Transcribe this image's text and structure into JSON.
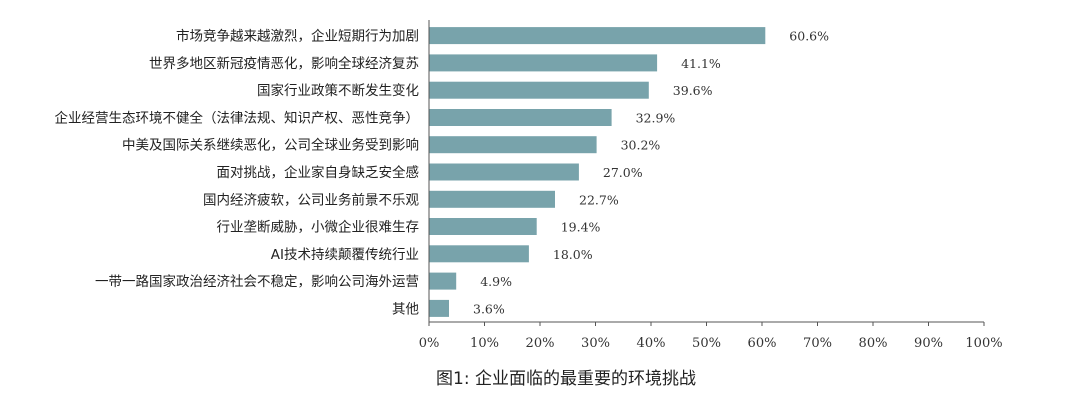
{
  "chart_data": {
    "type": "bar",
    "orientation": "horizontal",
    "title": "图1: 企业面临的最重要的环境挑战",
    "xlabel": "",
    "ylabel": "",
    "xlim": [
      0,
      100
    ],
    "x_ticks": [
      "0%",
      "10%",
      "20%",
      "30%",
      "40%",
      "50%",
      "60%",
      "70%",
      "80%",
      "90%",
      "100%"
    ],
    "grid": false,
    "bar_color": "#78a3ab",
    "categories": [
      "市场竞争越来越激烈，企业短期行为加剧",
      "世界多地区新冠疫情恶化，影响全球经济复苏",
      "国家行业政策不断发生变化",
      "企业经营生态环境不健全（法律法规、知识产权、恶性竞争）",
      "中美及国际关系继续恶化，公司全球业务受到影响",
      "面对挑战，企业家自身缺乏安全感",
      "国内经济疲软，公司业务前景不乐观",
      "行业垄断威胁，小微企业很难生存",
      "AI技术持续颠覆传统行业",
      "一带一路国家政治经济社会不稳定，影响公司海外运营",
      "其他"
    ],
    "values": [
      60.6,
      41.1,
      39.6,
      32.9,
      30.2,
      27.0,
      22.7,
      19.4,
      18.0,
      4.9,
      3.6
    ],
    "value_labels": [
      "60.6%",
      "41.1%",
      "39.6%",
      "32.9%",
      "30.2%",
      "27.0%",
      "22.7%",
      "19.4%",
      "18.0%",
      "4.9%",
      "3.6%"
    ]
  }
}
